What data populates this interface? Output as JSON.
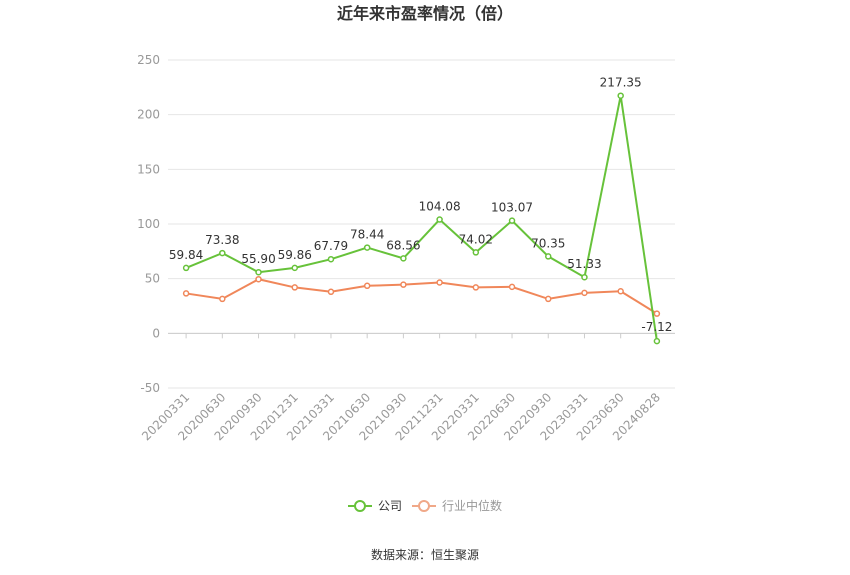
{
  "chart_data": {
    "type": "line",
    "title": "近年来市盈率情况（倍）",
    "categories": [
      "20200331",
      "20200630",
      "20200930",
      "20201231",
      "20210331",
      "20210630",
      "20210930",
      "20211231",
      "20220331",
      "20220630",
      "20220930",
      "20230331",
      "20230630",
      "20240828"
    ],
    "series": [
      {
        "name": "公司",
        "color": "#67c23a",
        "values": [
          59.84,
          73.38,
          55.9,
          59.86,
          67.79,
          78.44,
          68.56,
          104.08,
          74.02,
          103.07,
          70.35,
          51.33,
          217.35,
          -7.12
        ],
        "labels": [
          "59.84",
          "73.38",
          "55.90",
          "59.86",
          "67.79",
          "78.44",
          "68.56",
          "104.08",
          "74.02",
          "103.07",
          "70.35",
          "51.33",
          "217.35",
          "-7.12"
        ]
      },
      {
        "name": "行业中位数",
        "color": "#f0875a",
        "values": [
          36.5,
          31.5,
          49.5,
          42.0,
          38.0,
          43.5,
          44.5,
          46.5,
          42.0,
          42.5,
          31.5,
          37.0,
          38.5,
          18.0
        ]
      }
    ],
    "yticks": [
      -50,
      0,
      50,
      100,
      150,
      200,
      250
    ],
    "ylim": [
      -50,
      250
    ],
    "grid": true,
    "legend_position": "bottom-center",
    "source": "数据来源：恒生聚源"
  }
}
